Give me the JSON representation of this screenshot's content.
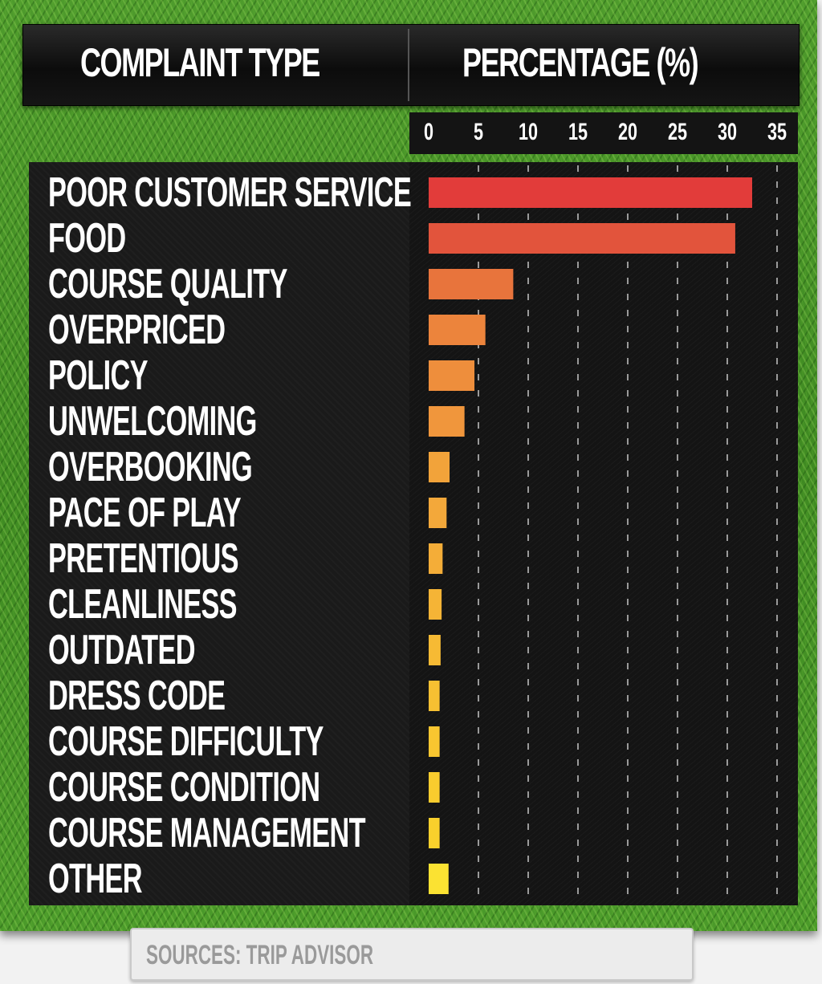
{
  "header": {
    "left_title": "COMPLAINT TYPE",
    "right_title": "PERCENTAGE (%)"
  },
  "chart_data": {
    "type": "bar",
    "orientation": "horizontal",
    "categories": [
      "POOR CUSTOMER SERVICE",
      "FOOD",
      "COURSE QUALITY",
      "OVERPRICED",
      "POLICY",
      "UNWELCOMING",
      "OVERBOOKING",
      "PACE OF PLAY",
      "PRETENTIOUS",
      "CLEANLINESS",
      "OUTDATED",
      "DRESS CODE",
      "COURSE DIFFICULTY",
      "COURSE CONDITION",
      "COURSE MANAGEMENT",
      "OTHER"
    ],
    "values": [
      32.5,
      30.8,
      8.5,
      5.7,
      4.6,
      3.6,
      2.1,
      1.8,
      1.4,
      1.3,
      1.2,
      1.1,
      1.1,
      1.1,
      1.1,
      2.0
    ],
    "ticks": [
      0,
      5,
      10,
      15,
      20,
      25,
      30,
      35
    ],
    "xlim": [
      0,
      35
    ],
    "title": "",
    "xlabel": "PERCENTAGE (%)",
    "ylabel": "COMPLAINT TYPE",
    "grid": "vertical dashed",
    "bar_colors": [
      "#e23c3a",
      "#e2543c",
      "#e8743c",
      "#ec843c",
      "#ee8e3c",
      "#f0963c",
      "#f2a33a",
      "#f3a83a",
      "#f4ad38",
      "#f5b436",
      "#f6ba34",
      "#f7c032",
      "#f8c630",
      "#f9cc2e",
      "#f9d02c",
      "#fbe232"
    ]
  },
  "source": {
    "text": "SOURCES: TRIP ADVISOR"
  }
}
